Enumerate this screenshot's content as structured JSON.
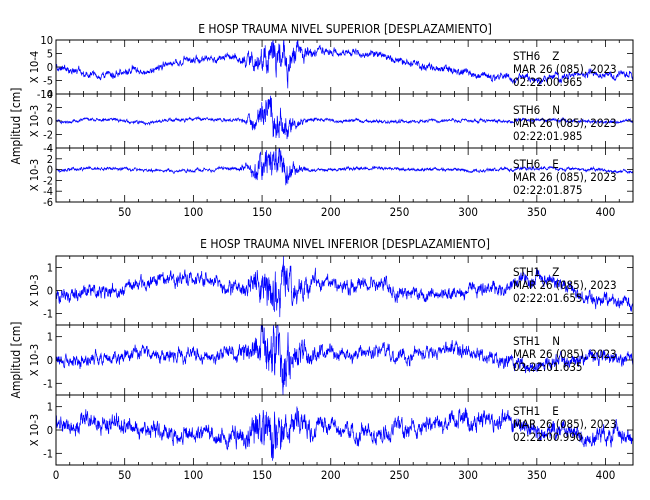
{
  "colors": {
    "trace": "#0000ff",
    "axis": "#000000",
    "text": "#000000",
    "background": "#ffffff"
  },
  "chart_data": [
    {
      "type": "line",
      "title": "E HOSP TRAUMA NIVEL SUPERIOR [DESPLAZAMIENTO]",
      "ylabel": "Amplitud [cm]",
      "xlim": [
        0,
        420
      ],
      "xticks": [
        "50",
        "100",
        "150",
        "200",
        "250",
        "300",
        "350",
        "400"
      ],
      "grid": false,
      "panels": [
        {
          "station": "STH6",
          "component": "Z",
          "date": "MAR 26 (085), 2023",
          "time": "02:22:00.965",
          "scale_label": "X 10-4",
          "ylim": [
            -10,
            10
          ],
          "yticks": [
            "10",
            "5",
            "0",
            "-5",
            "-10"
          ],
          "level": [
            0.0,
            -3.5,
            -1.5,
            2.5,
            4.0,
            3.0,
            6.0,
            5.0,
            1.5,
            -1.5,
            -3.5,
            -4.5,
            -2.5,
            -3.5
          ],
          "noise": 1.6,
          "event_peak": 7.0,
          "event_center": 160,
          "event_width": 12
        },
        {
          "station": "STH6",
          "component": "N",
          "date": "MAR 26 (085), 2023",
          "time": "02:22:01.985",
          "scale_label": "X 10-3",
          "ylim": [
            -4,
            4
          ],
          "yticks": [
            "4",
            "2",
            "0",
            "-2",
            "-4"
          ],
          "level": [
            0.0,
            0.2,
            -0.2,
            0.3,
            0.1,
            -0.1,
            0.2,
            0.0,
            -0.2,
            0.1,
            0.0,
            0.2,
            -0.1,
            0.0
          ],
          "noise": 0.28,
          "event_peak": 3.0,
          "event_center": 158,
          "event_width": 10
        },
        {
          "station": "STH6",
          "component": "E",
          "date": "MAR 26 (085), 2023",
          "time": "02:22:01.875",
          "scale_label": "X 10-3",
          "ylim": [
            -6,
            4
          ],
          "yticks": [
            "4",
            "2",
            "0",
            "-2",
            "-4",
            "-6"
          ],
          "level": [
            0.0,
            0.3,
            0.0,
            -0.2,
            0.4,
            0.0,
            -0.1,
            0.2,
            0.1,
            -0.1,
            0.0,
            0.2,
            0.0,
            -0.3
          ],
          "noise": 0.35,
          "event_peak": 4.2,
          "event_center": 158,
          "event_width": 10
        }
      ]
    },
    {
      "type": "line",
      "title": "E HOSP TRAUMA NIVEL INFERIOR [DESPLAZAMIENTO]",
      "ylabel": "Amplitud [cm]",
      "xlim": [
        0,
        420
      ],
      "xticks": [
        "0",
        "50",
        "100",
        "150",
        "200",
        "250",
        "300",
        "350",
        "400"
      ],
      "grid": false,
      "panels": [
        {
          "station": "STH1",
          "component": "Z",
          "date": "MAR 26 (085), 2023",
          "time": "02:22:01.655",
          "scale_label": "X 10-3",
          "ylim": [
            -1.5,
            1.5
          ],
          "yticks": [
            "1",
            "0",
            "-1"
          ],
          "level": [
            -0.2,
            -0.1,
            0.3,
            0.5,
            0.2,
            0.1,
            0.4,
            0.2,
            -0.1,
            -0.2,
            0.2,
            0.5,
            -0.3,
            -0.5
          ],
          "noise": 0.35,
          "event_peak": 1.0,
          "event_center": 162,
          "event_width": 12
        },
        {
          "station": "STH1",
          "component": "N",
          "date": "MAR 26 (085), 2023",
          "time": "02:22:01.635",
          "scale_label": "X 10-3",
          "ylim": [
            -1.5,
            1.5
          ],
          "yticks": [
            "1",
            "0",
            "-1"
          ],
          "level": [
            0.0,
            0.1,
            0.3,
            0.1,
            0.3,
            0.2,
            0.1,
            0.3,
            0.2,
            0.4,
            -0.1,
            -0.3,
            0.2,
            0.0
          ],
          "noise": 0.35,
          "event_peak": 1.1,
          "event_center": 160,
          "event_width": 12
        },
        {
          "station": "STH1",
          "component": "E",
          "date": "MAR 26 (085), 2023",
          "time": "02:22:00.990",
          "scale_label": "X 10-3",
          "ylim": [
            -1.5,
            1.5
          ],
          "yticks": [
            "1",
            "0",
            "-1"
          ],
          "level": [
            0.2,
            0.3,
            0.0,
            -0.1,
            -0.3,
            0.2,
            0.1,
            -0.2,
            0.0,
            0.4,
            0.5,
            0.0,
            -0.3,
            -0.2
          ],
          "noise": 0.45,
          "event_peak": 0.8,
          "event_center": 158,
          "event_width": 12
        }
      ]
    }
  ]
}
